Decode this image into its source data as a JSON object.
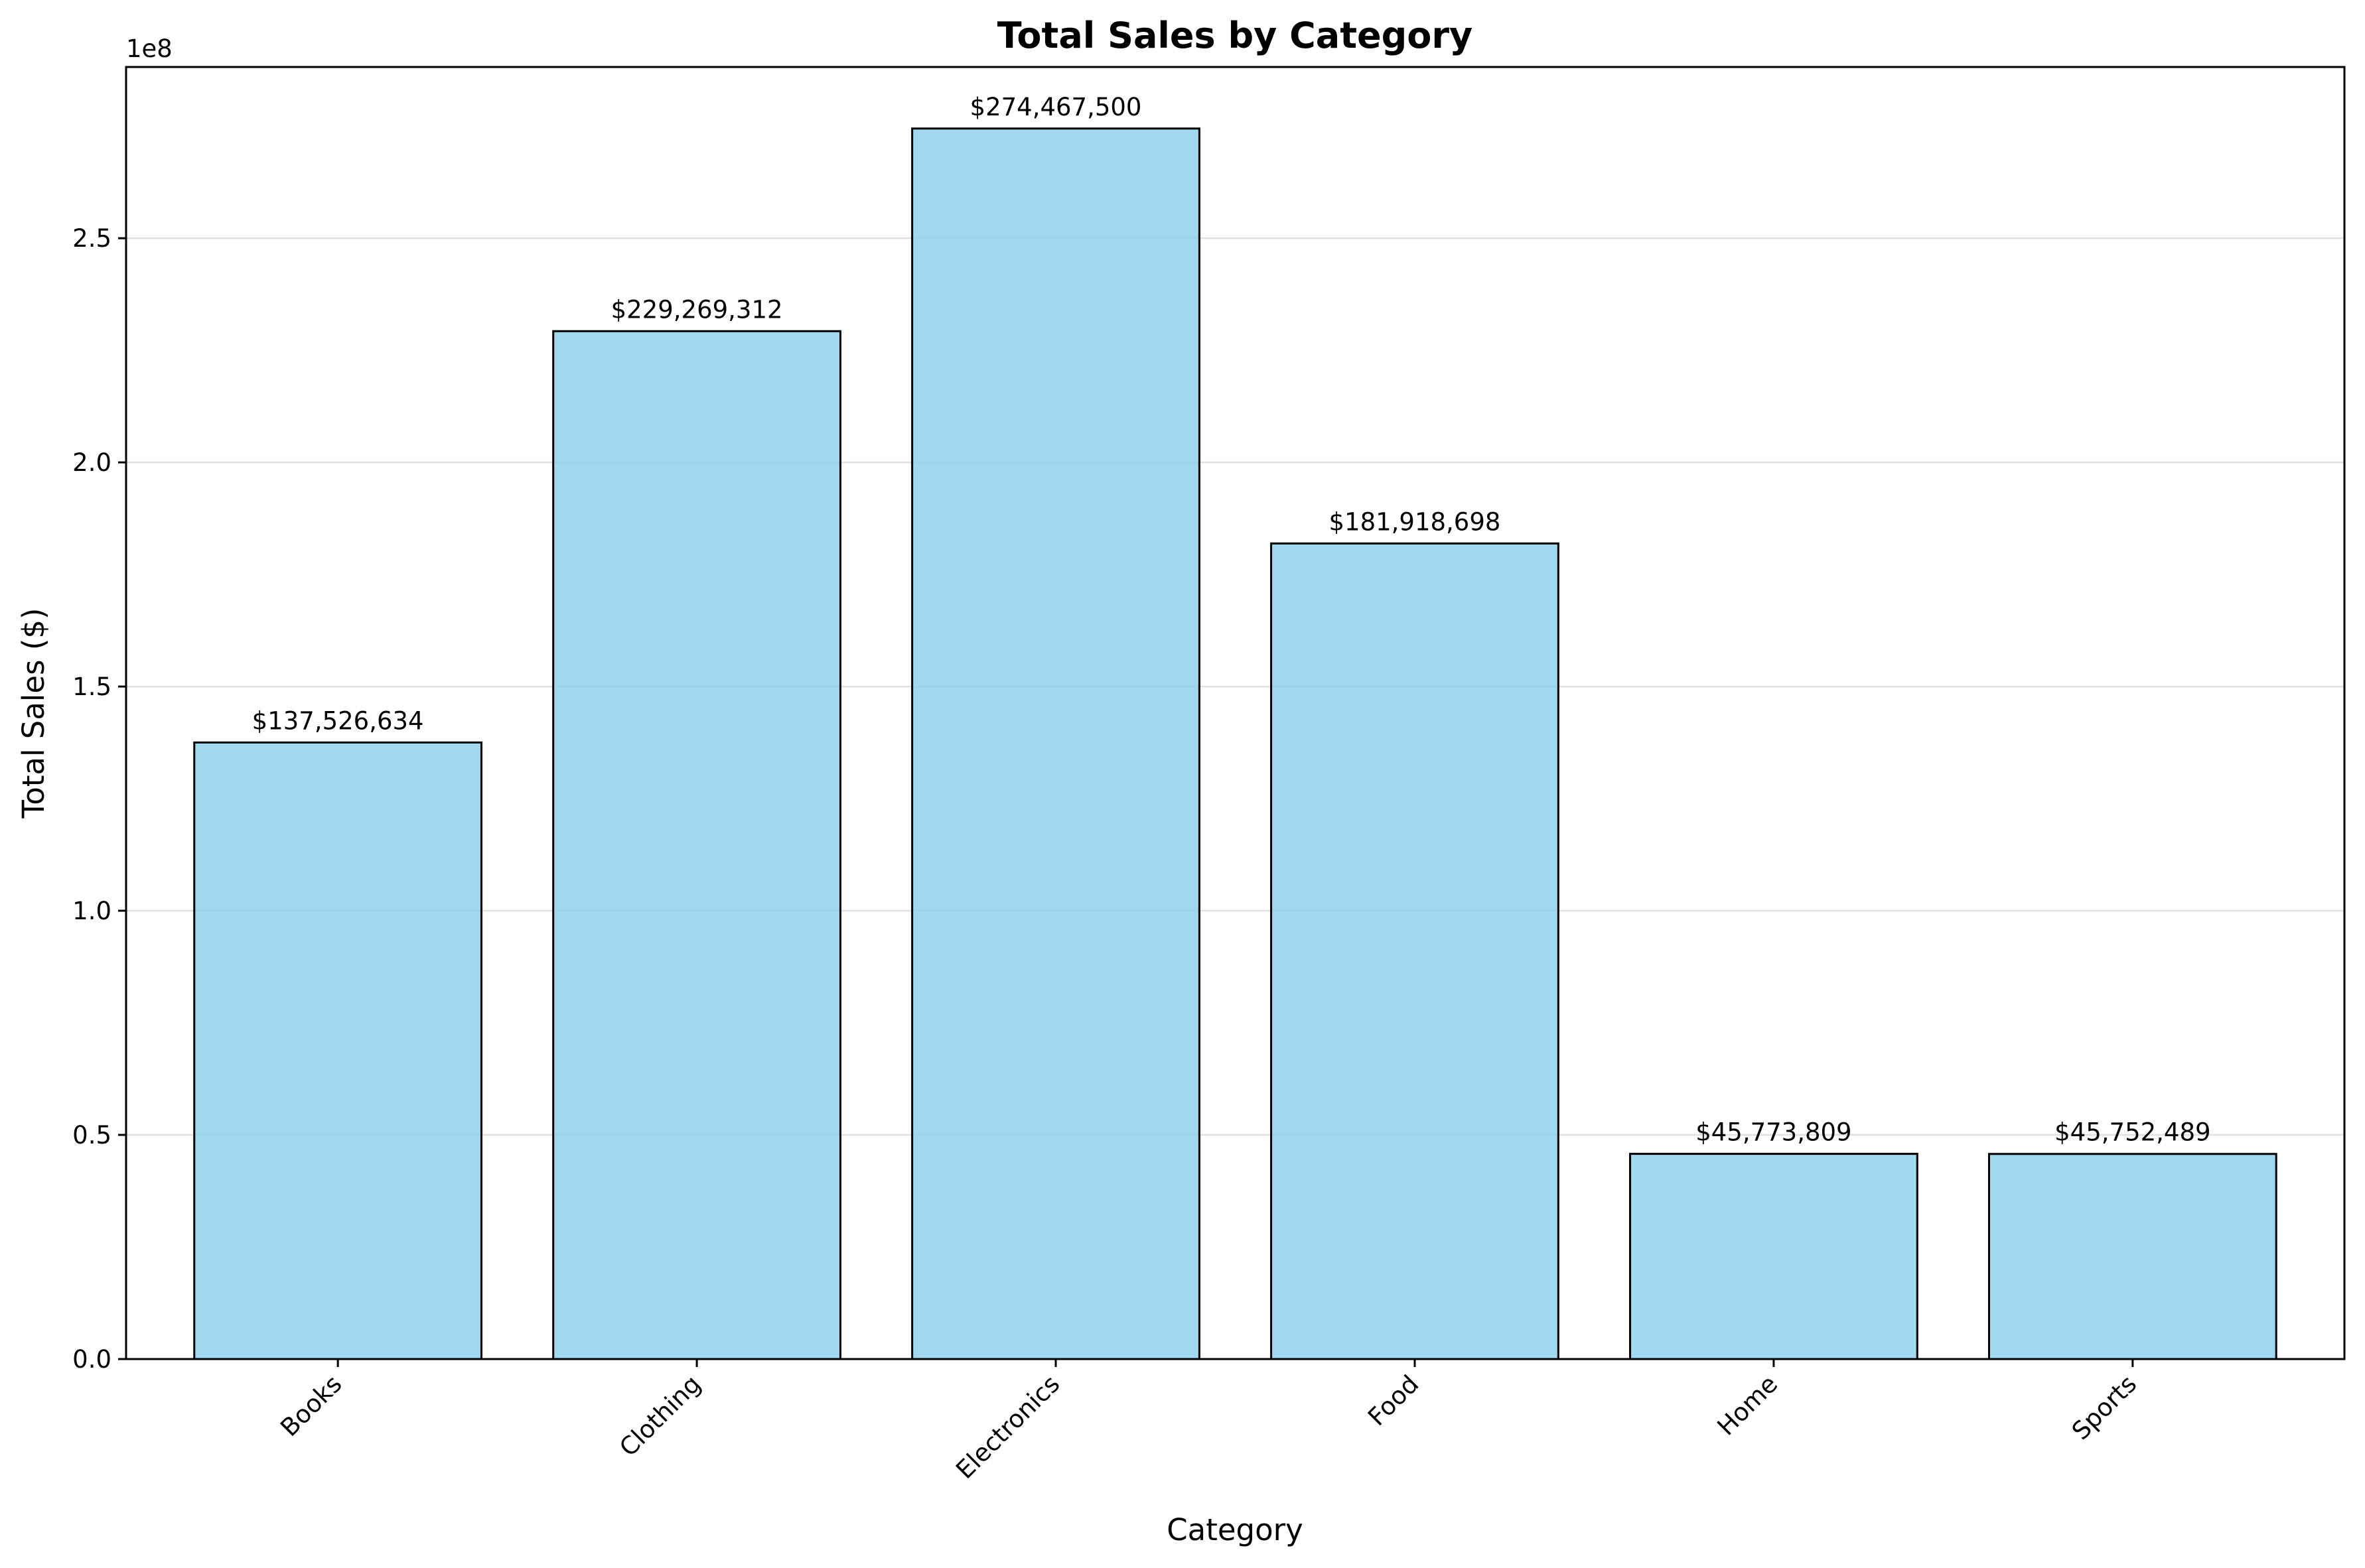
{
  "chart_data": {
    "type": "bar",
    "title": "Total Sales by Category",
    "xlabel": "Category",
    "ylabel": "Total Sales ($)",
    "y_offset_text": "1e8",
    "categories": [
      "Books",
      "Clothing",
      "Electronics",
      "Food",
      "Home",
      "Sports"
    ],
    "values": [
      137526634,
      229269312,
      274467500,
      181918698,
      45773809,
      45752489
    ],
    "value_labels": [
      "$137,526,634",
      "$229,269,312",
      "$274,467,500",
      "$181,918,698",
      "$45,773,809",
      "$45,752,489"
    ],
    "ylim": [
      0,
      288190875
    ],
    "yticks": [
      0,
      50000000,
      100000000,
      150000000,
      200000000,
      250000000
    ],
    "ytick_labels": [
      "0.0",
      "0.5",
      "1.0",
      "1.5",
      "2.0",
      "2.5"
    ],
    "grid": "y-axis, light gray",
    "legend": "none",
    "bar_color": "#87ceeb",
    "bar_edge_color": "#000000"
  }
}
